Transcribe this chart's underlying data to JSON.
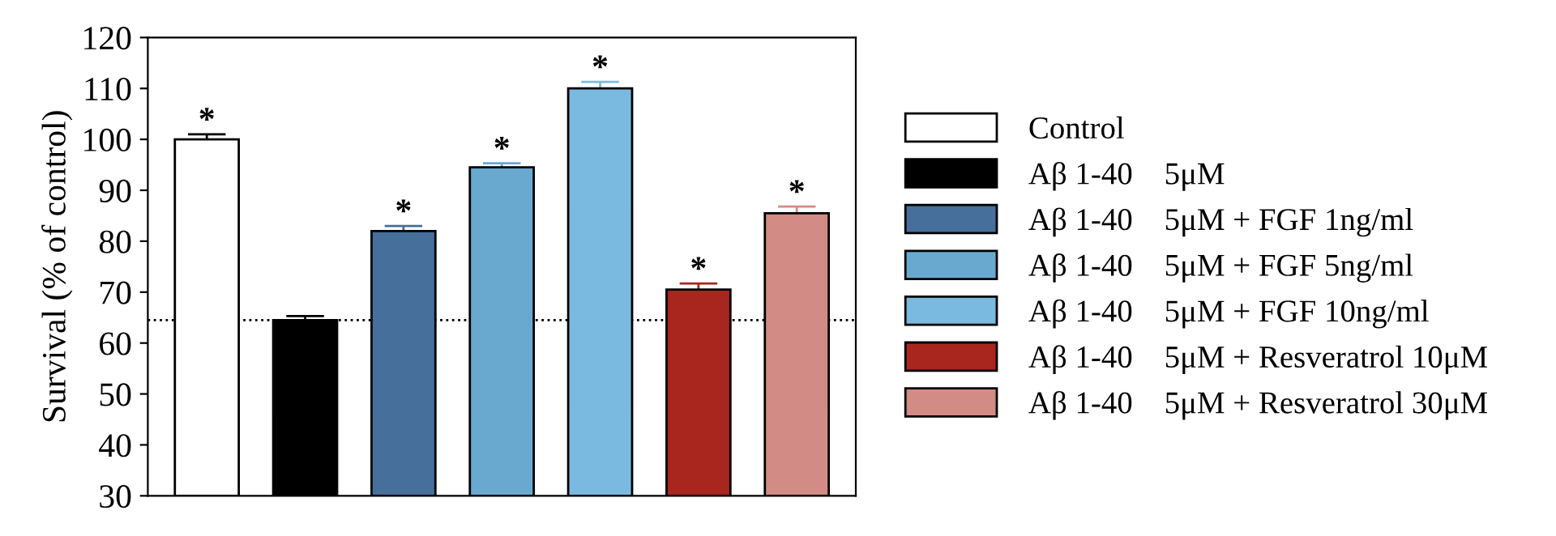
{
  "chart_data": {
    "type": "bar",
    "ylabel": "Survival (% of control)",
    "categories": [
      null,
      null,
      null,
      null,
      null,
      null,
      null
    ],
    "series": [
      {
        "name": "Control",
        "color": "#ffffff",
        "values": [
          100,
          null,
          null,
          null,
          null,
          null,
          null
        ],
        "errors": [
          [
            100,
            101
          ],
          null,
          null,
          null,
          null,
          null,
          null
        ],
        "value_labels": [
          "*",
          null,
          null,
          null,
          null,
          null,
          null
        ]
      },
      {
        "name": "Aβ 1-40    5μM",
        "color": "#000000",
        "values": [
          null,
          64.5,
          null,
          null,
          null,
          null,
          null
        ],
        "errors": [
          null,
          [
            64.5,
            65.3
          ],
          null,
          null,
          null,
          null,
          null
        ],
        "value_labels": [
          null,
          null,
          null,
          null,
          null,
          null,
          null
        ]
      },
      {
        "name": "Aβ 1-40    5μM + FGF 1ng/ml",
        "color": "#466f9b",
        "values": [
          null,
          null,
          82,
          null,
          null,
          null,
          null
        ],
        "errors": [
          null,
          null,
          [
            82,
            83
          ],
          null,
          null,
          null,
          null
        ],
        "value_labels": [
          null,
          null,
          "*",
          null,
          null,
          null,
          null
        ]
      },
      {
        "name": "Aβ 1-40    5μM + FGF 5ng/ml",
        "color": "#69a9d0",
        "values": [
          null,
          null,
          null,
          94.5,
          null,
          null,
          null
        ],
        "errors": [
          null,
          null,
          null,
          [
            94.5,
            95.3
          ],
          null,
          null,
          null
        ],
        "value_labels": [
          null,
          null,
          null,
          "*",
          null,
          null,
          null
        ]
      },
      {
        "name": "Aβ 1-40    5μM + FGF 10ng/ml",
        "color": "#7bbae0",
        "values": [
          null,
          null,
          null,
          null,
          110,
          null,
          null
        ],
        "errors": [
          null,
          null,
          null,
          null,
          [
            110,
            111.3
          ],
          null,
          null
        ],
        "value_labels": [
          null,
          null,
          null,
          null,
          "*",
          null,
          null
        ]
      },
      {
        "name": "Aβ 1-40    5μM + Resveratrol 10μM",
        "color": "#a8261e",
        "values": [
          null,
          null,
          null,
          null,
          null,
          70.5,
          null
        ],
        "errors": [
          null,
          null,
          null,
          null,
          null,
          [
            70.5,
            71.7
          ],
          null
        ],
        "value_labels": [
          null,
          null,
          null,
          null,
          null,
          "*",
          null
        ]
      },
      {
        "name": "Aβ 1-40    5μM + Resveratrol 30μM",
        "color": "#d38b85",
        "values": [
          null,
          null,
          null,
          null,
          null,
          null,
          85.5
        ],
        "errors": [
          null,
          null,
          null,
          null,
          null,
          null,
          [
            85.5,
            86.8
          ]
        ],
        "value_labels": [
          null,
          null,
          null,
          null,
          null,
          null,
          "*"
        ]
      }
    ],
    "ylim": [
      30,
      120
    ],
    "yticks": [
      30,
      40,
      50,
      60,
      70,
      80,
      90,
      100,
      110,
      120
    ],
    "ref_lines": [
      {
        "axis": "y",
        "value": 64.5,
        "label": null,
        "color": "#000000",
        "line_style": "dotted"
      }
    ],
    "grid": false,
    "legend": "right"
  }
}
